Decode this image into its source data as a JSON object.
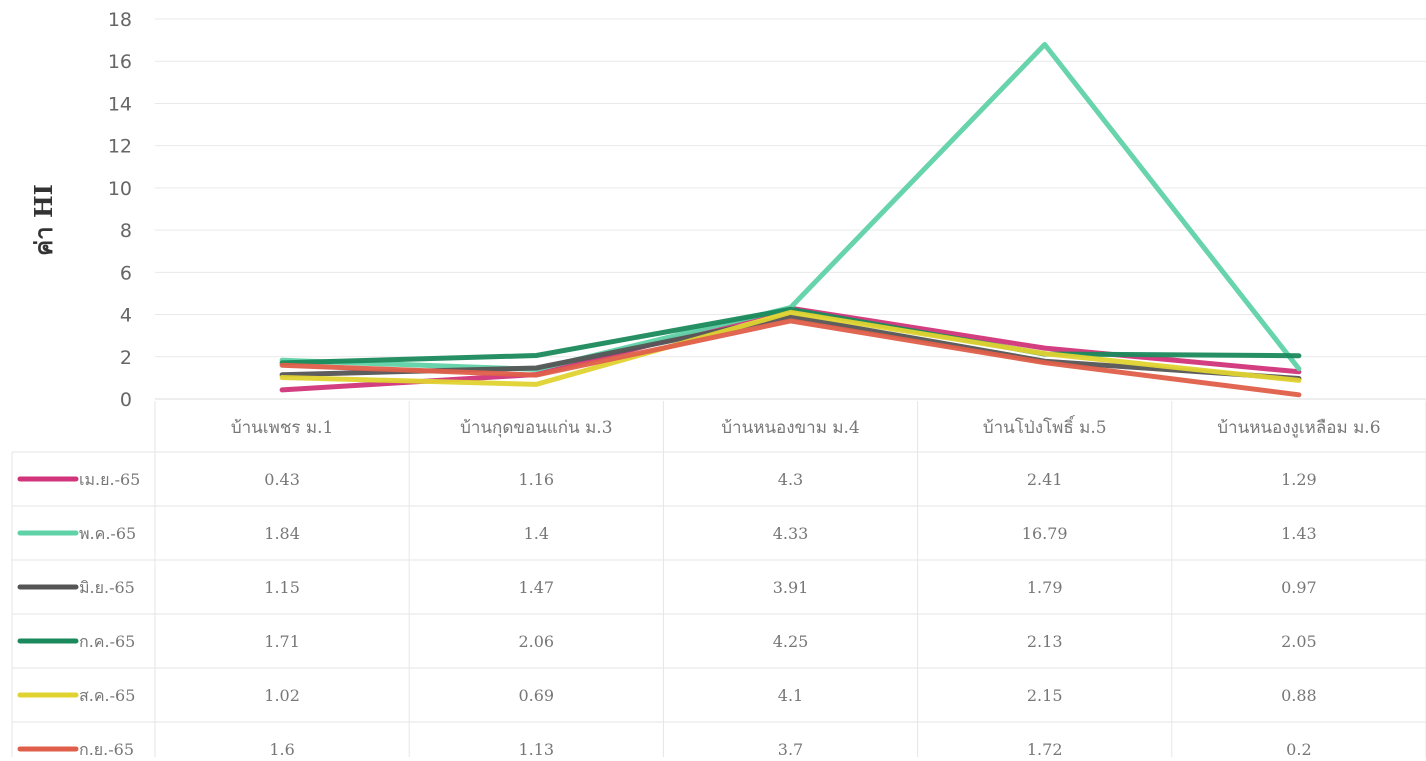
{
  "chart_data": {
    "type": "line",
    "title": "",
    "xlabel": "",
    "ylabel": "ค่า HI",
    "ylim": [
      0,
      18
    ],
    "yticks": [
      0,
      2,
      4,
      6,
      8,
      10,
      12,
      14,
      16,
      18
    ],
    "grid": true,
    "legend": "data-table-left",
    "categories": [
      "บ้านเพชร ม.1",
      "บ้านกุดขอนแก่น ม.3",
      "บ้านหนองขาม ม.4",
      "บ้านโป่งโพธิ์ ม.5",
      "บ้านหนองงูเหลือม ม.6"
    ],
    "series": [
      {
        "name": "เม.ย.-65",
        "color": "#d1347a",
        "values": [
          0.43,
          1.16,
          4.3,
          2.41,
          1.29
        ]
      },
      {
        "name": "พ.ค.-65",
        "color": "#5fd2a8",
        "values": [
          1.84,
          1.4,
          4.33,
          16.79,
          1.43
        ]
      },
      {
        "name": "มิ.ย.-65",
        "color": "#555555",
        "values": [
          1.15,
          1.47,
          3.91,
          1.79,
          0.97
        ]
      },
      {
        "name": "ก.ค.-65",
        "color": "#1a8a5c",
        "values": [
          1.71,
          2.06,
          4.25,
          2.13,
          2.05
        ]
      },
      {
        "name": "ส.ค.-65",
        "color": "#e0d330",
        "values": [
          1.02,
          0.69,
          4.1,
          2.15,
          0.88
        ]
      },
      {
        "name": "ก.ย.-65",
        "color": "#df5f4a",
        "values": [
          1.6,
          1.13,
          3.7,
          1.72,
          0.2
        ]
      }
    ]
  }
}
